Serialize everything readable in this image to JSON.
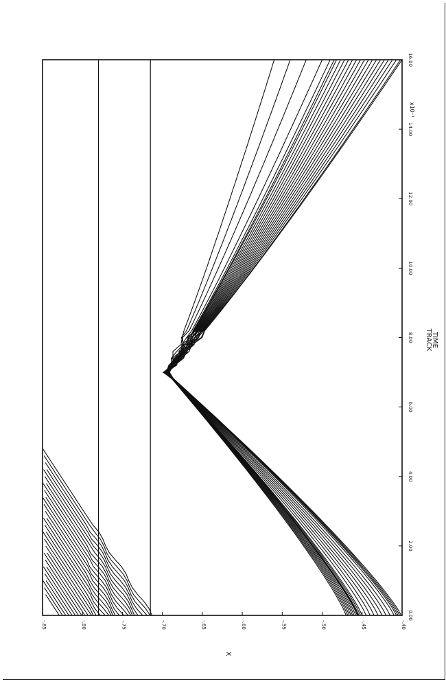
{
  "chart_data": {
    "type": "line",
    "title": "",
    "xlabel_top": "TRACK",
    "xlabel": "TIME",
    "ylabel": "X",
    "x_multiplier": "x10⁻¹",
    "xlim": [
      0,
      16
    ],
    "ylim": [
      -0.4,
      -0.85
    ],
    "x_ticks": [
      {
        "value": 0,
        "label": "0.00"
      },
      {
        "value": 2,
        "label": "2.00"
      },
      {
        "value": 4,
        "label": "4.00"
      },
      {
        "value": 6,
        "label": "6.00"
      },
      {
        "value": 8,
        "label": "8.00"
      },
      {
        "value": 10,
        "label": "10.00"
      },
      {
        "value": 12,
        "label": "12.00"
      },
      {
        "value": 14,
        "label": "14.00"
      },
      {
        "value": 16,
        "label": "16.00"
      }
    ],
    "y_ticks": [
      {
        "value": -0.85,
        "label": "-.85"
      },
      {
        "value": -0.8,
        "label": "-.80"
      },
      {
        "value": -0.75,
        "label": "-.75"
      },
      {
        "value": -0.7,
        "label": "-.70"
      },
      {
        "value": -0.65,
        "label": "-.65"
      },
      {
        "value": -0.6,
        "label": "-.60"
      },
      {
        "value": -0.55,
        "label": "-.55"
      },
      {
        "value": -0.5,
        "label": "-.50"
      },
      {
        "value": -0.45,
        "label": "-.45"
      },
      {
        "value": -0.4,
        "label": "-.40"
      }
    ],
    "reference_lines": [
      -0.78,
      -0.715
    ],
    "grid": false,
    "legend": "none",
    "line_color": "#111111",
    "upper_tracks": {
      "count": 30,
      "x0": 0,
      "start_values": [
        -0.713,
        -0.717,
        -0.721,
        -0.725,
        -0.729,
        -0.733,
        -0.737,
        -0.741,
        -0.745,
        -0.749,
        -0.753,
        -0.757,
        -0.761,
        -0.765,
        -0.769,
        -0.773,
        -0.777,
        -0.781,
        -0.785,
        -0.789,
        -0.793,
        -0.797,
        -0.801,
        -0.805,
        -0.809,
        -0.813,
        -0.817,
        -0.821,
        -0.825,
        -0.829
      ],
      "slope_per_unit_time": -0.0285,
      "end_value": -0.85
    },
    "lower_tracks": {
      "count": 24,
      "x0": 0,
      "start_values": [
        -0.455,
        -0.45,
        -0.445,
        -0.44,
        -0.435,
        -0.43,
        -0.425,
        -0.42,
        -0.415,
        -0.41,
        -0.407,
        -0.405,
        -0.403,
        -0.401,
        -0.47,
        -0.468,
        -0.466,
        -0.464,
        -0.462,
        -0.46,
        -0.458,
        -0.456,
        -0.454,
        -0.452
      ],
      "converge_point": [
        7.0,
        -0.695
      ],
      "exit_values_at_x16": [
        -0.482,
        -0.477,
        -0.472,
        -0.467,
        -0.462,
        -0.457,
        -0.452,
        -0.447,
        -0.442,
        -0.437,
        -0.432,
        -0.427,
        -0.422,
        -0.417,
        -0.412,
        -0.407,
        -0.402,
        -0.4,
        -0.56,
        -0.54,
        -0.52,
        -0.5,
        -0.49,
        -0.485
      ]
    }
  }
}
